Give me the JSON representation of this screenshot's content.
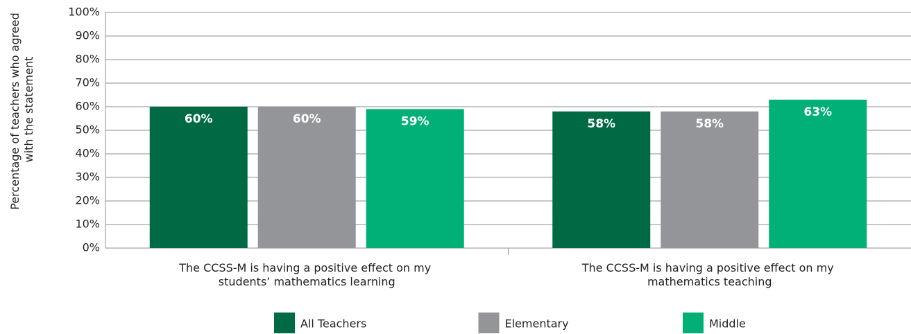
{
  "chart_data": {
    "type": "bar",
    "ylabel": "Percentage of teachers who agreed with the statement",
    "categories": [
      "The CCSS-M is having a positive effect on my students’ mathematics learning",
      "The CCSS-M is having a positive effect on my mathematics teaching"
    ],
    "series": [
      {
        "name": "All Teachers",
        "color": "#006a45",
        "values": [
          60,
          58
        ],
        "value_labels": [
          "60%",
          "58%"
        ]
      },
      {
        "name": "Elementary",
        "color": "#939598",
        "values": [
          60,
          58
        ],
        "value_labels": [
          "60%",
          "58%"
        ]
      },
      {
        "name": "Middle",
        "color": "#00b077",
        "values": [
          59,
          63
        ],
        "value_labels": [
          "59%",
          "63%"
        ]
      }
    ],
    "ylim": [
      0,
      100
    ],
    "yticks": [
      {
        "value": 0,
        "label": "0%"
      },
      {
        "value": 10,
        "label": "10%"
      },
      {
        "value": 20,
        "label": "20%"
      },
      {
        "value": 30,
        "label": "30%"
      },
      {
        "value": 40,
        "label": "40%"
      },
      {
        "value": 50,
        "label": "50%"
      },
      {
        "value": 60,
        "label": "60%"
      },
      {
        "value": 70,
        "label": "70%"
      },
      {
        "value": 80,
        "label": "80%"
      },
      {
        "value": 90,
        "label": "90%"
      },
      {
        "value": 100,
        "label": "100%"
      }
    ],
    "grid": true,
    "legend": "bottom"
  }
}
